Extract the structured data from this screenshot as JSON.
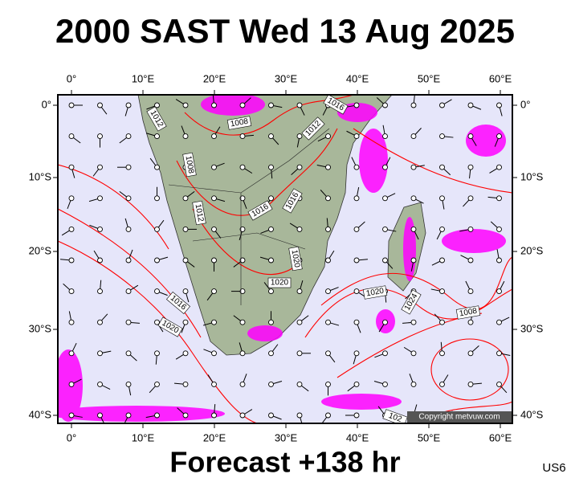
{
  "header": {
    "title": "2000 SAST Wed 13 Aug 2025"
  },
  "axes": {
    "top": [
      "0°",
      "10°E",
      "20°E",
      "30°E",
      "40°E",
      "50°E",
      "60°E"
    ],
    "bottom": [
      "0°",
      "10°E",
      "20°E",
      "30°E",
      "40°E",
      "50°E",
      "60°E"
    ],
    "left": [
      "0°",
      "10°S",
      "20°S",
      "30°S",
      "40°S"
    ],
    "right": [
      "0°",
      "10°S",
      "20°S",
      "30°S",
      "40°S"
    ]
  },
  "isobar_labels": [
    "1016",
    "1012",
    "1008",
    "1012",
    "1008",
    "1016",
    "1016",
    "1012",
    "1020",
    "1020",
    "1020",
    "1024",
    "1016",
    "1020",
    "1008",
    "102"
  ],
  "copyright": "Copyright metvuw.com",
  "footer": {
    "forecast": "Forecast +138 hr",
    "code": "US6"
  }
}
